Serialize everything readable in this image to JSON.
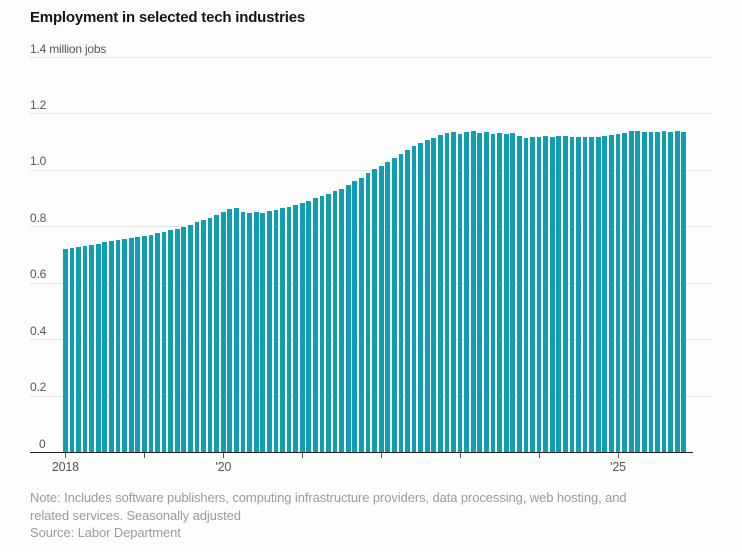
{
  "title": "Employment in selected tech industries",
  "footer": {
    "note_line1": "Note: Includes software publishers, computing infrastructure providers, data processing, web hosting, and",
    "note_line2": "related services. Seasonally adjusted",
    "source": "Source: Labor Department"
  },
  "colors": {
    "bar": "#119eb3",
    "grid": "#e4e4e4",
    "axis": "#222222",
    "labels": "#565656",
    "title": "#141414",
    "note": "#9b9b9b",
    "background": "#fdfdfd"
  },
  "chart_data": {
    "type": "bar",
    "title": "Employment in selected tech industries",
    "ylabel": "million jobs",
    "unit_label_top": "1.4 million jobs",
    "ylim": [
      0,
      1.4
    ],
    "yticks": [
      {
        "value": 1.4,
        "label": "1.4 million jobs"
      },
      {
        "value": 1.2,
        "label": "1.2"
      },
      {
        "value": 1.0,
        "label": "1.0"
      },
      {
        "value": 0.8,
        "label": "0.8"
      },
      {
        "value": 0.6,
        "label": "0.6"
      },
      {
        "value": 0.4,
        "label": "0.4"
      },
      {
        "value": 0.2,
        "label": "0.2"
      },
      {
        "value": 0,
        "label": "0"
      }
    ],
    "xticks": [
      {
        "year": "2018",
        "label": "2018"
      },
      {
        "year": "2019",
        "label": ""
      },
      {
        "year": "2020",
        "label": "'20"
      },
      {
        "year": "2021",
        "label": ""
      },
      {
        "year": "2022",
        "label": ""
      },
      {
        "year": "2023",
        "label": ""
      },
      {
        "year": "2024",
        "label": ""
      },
      {
        "year": "2025",
        "label": "'25"
      }
    ],
    "frequency": "monthly",
    "start": "2018-01",
    "end": "2025-11",
    "grid": true,
    "legend": "none",
    "values": [
      0.721,
      0.724,
      0.727,
      0.731,
      0.735,
      0.739,
      0.743,
      0.748,
      0.752,
      0.755,
      0.758,
      0.762,
      0.766,
      0.77,
      0.775,
      0.78,
      0.786,
      0.792,
      0.799,
      0.806,
      0.814,
      0.822,
      0.831,
      0.84,
      0.851,
      0.861,
      0.866,
      0.851,
      0.847,
      0.852,
      0.848,
      0.854,
      0.859,
      0.864,
      0.869,
      0.875,
      0.882,
      0.89,
      0.899,
      0.906,
      0.914,
      0.924,
      0.934,
      0.946,
      0.959,
      0.973,
      0.988,
      1.002,
      1.015,
      1.029,
      1.043,
      1.057,
      1.071,
      1.085,
      1.097,
      1.107,
      1.114,
      1.122,
      1.13,
      1.135,
      1.128,
      1.135,
      1.137,
      1.131,
      1.135,
      1.128,
      1.131,
      1.129,
      1.131,
      1.119,
      1.112,
      1.115,
      1.118,
      1.12,
      1.117,
      1.119,
      1.121,
      1.117,
      1.115,
      1.117,
      1.116,
      1.118,
      1.12,
      1.122,
      1.127,
      1.131,
      1.137,
      1.139,
      1.135,
      1.133,
      1.135,
      1.137,
      1.135,
      1.137,
      1.136
    ]
  }
}
